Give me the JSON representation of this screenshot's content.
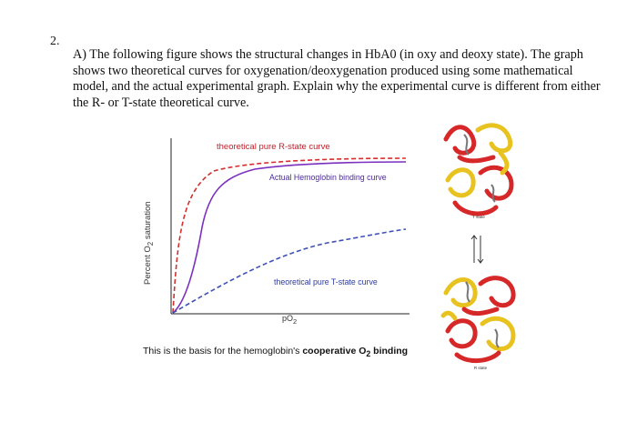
{
  "question": {
    "number": "2.",
    "part_label": "A)",
    "text": "The following figure shows the structural changes in HbA0 (in oxy and deoxy state). The graph shows two theoretical curves for oxygenation/deoxygenation produced using some mathematical model, and the actual experimental graph. Explain why the experimental curve is different from either the R- or T-state theoretical curve."
  },
  "figure": {
    "ylabel_prefix": "Percent O",
    "ylabel_sub": "2",
    "ylabel_suffix": " saturation",
    "xlabel_prefix": "pO",
    "xlabel_sub": "2",
    "curve_r_label": "theoretical pure R-state curve",
    "curve_actual_label": "Actual Hemoglobin binding curve",
    "curve_t_label": "theoretical pure T-state curve",
    "caption_prefix": "This is the basis for the hemoglobin's ",
    "caption_bold": "cooperative O",
    "caption_sub": "2",
    "caption_bold_suffix": " binding",
    "colors": {
      "r_curve": "#d32f2f",
      "actual_curve": "#7b2fbf",
      "t_curve": "#3f51b5"
    }
  },
  "structures": {
    "top_state_label": "T state",
    "bottom_state_label": "R state",
    "colors": {
      "alpha": "#e8c21e",
      "beta": "#d62828"
    }
  }
}
